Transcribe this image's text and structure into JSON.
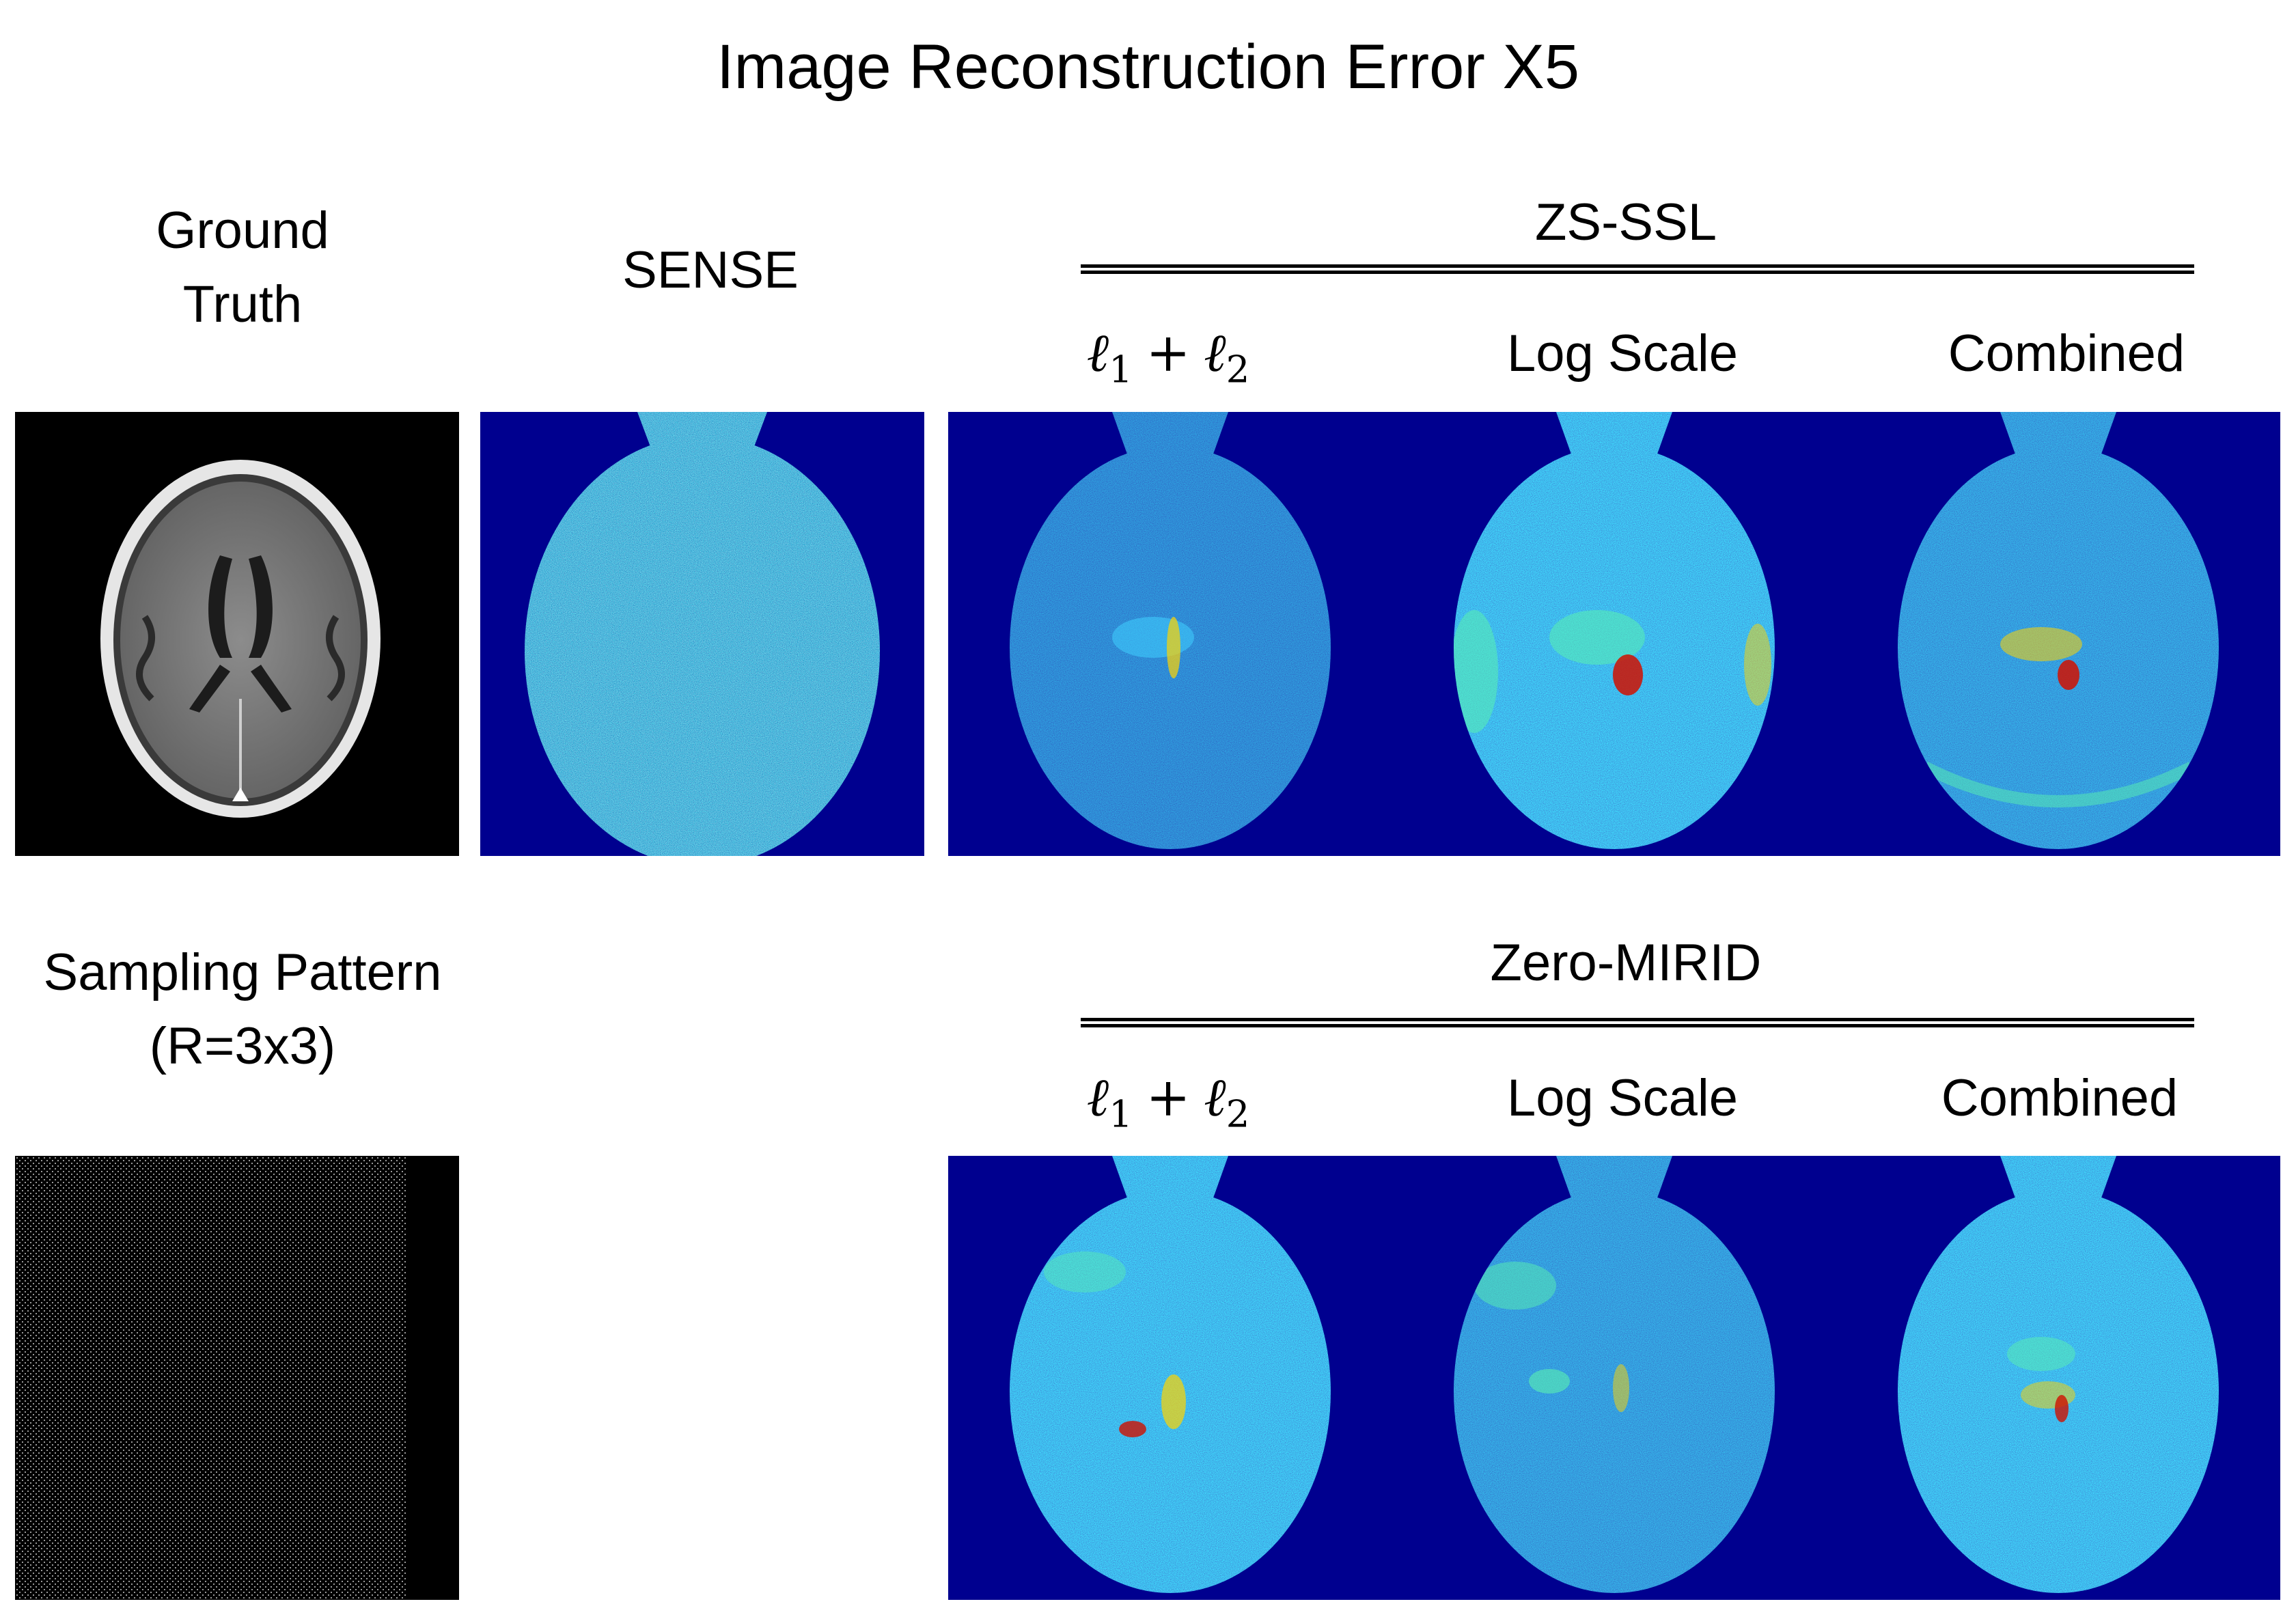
{
  "title": "Image Reconstruction Error X5",
  "labels": {
    "ground_truth": "Ground Truth",
    "sense": "SENSE",
    "sampling_pattern": "Sampling Pattern (R=3x3)"
  },
  "groups": [
    {
      "name": "ZS-SSL",
      "columns": [
        {
          "kind": "math",
          "symbol": "ℓ",
          "first_index": "1",
          "operator": "+",
          "second_index": "2"
        },
        {
          "kind": "text",
          "label": "Log Scale"
        },
        {
          "kind": "text",
          "label": "Combined"
        }
      ]
    },
    {
      "name": "Zero-MIRID",
      "columns": [
        {
          "kind": "math",
          "symbol": "ℓ",
          "first_index": "1",
          "operator": "+",
          "second_index": "2"
        },
        {
          "kind": "text",
          "label": "Log Scale"
        },
        {
          "kind": "text",
          "label": "Combined"
        }
      ]
    }
  ],
  "colors": {
    "error_map_background": "#00008f",
    "error_low": "#1a3fe0",
    "error_high": "#c40000",
    "mri_background": "#000000",
    "mri_tissue": "#7f7f7f"
  }
}
